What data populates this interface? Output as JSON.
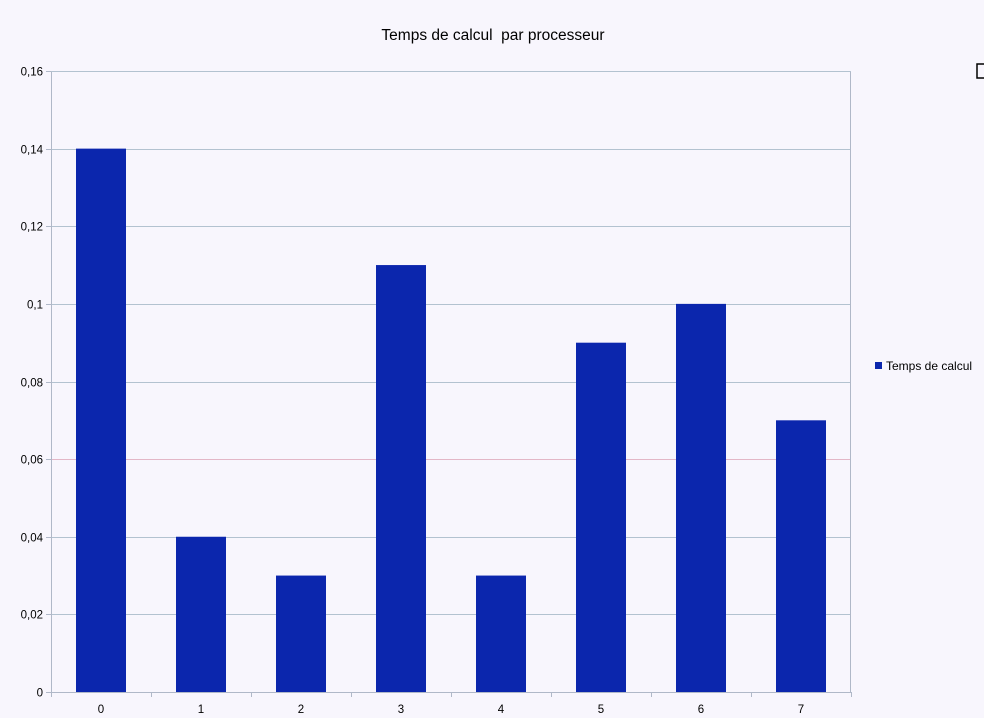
{
  "chart_data": {
    "type": "bar",
    "title": "Temps de calcul  par processeur",
    "xlabel": "",
    "ylabel": "",
    "categories": [
      "0",
      "1",
      "2",
      "3",
      "4",
      "5",
      "6",
      "7"
    ],
    "series": [
      {
        "name": "Temps de calcul",
        "values": [
          0.14,
          0.04,
          0.03,
          0.11,
          0.03,
          0.09,
          0.1,
          0.07
        ]
      }
    ],
    "ylim": [
      0,
      0.16
    ],
    "yticks": [
      0,
      0.02,
      0.04,
      0.06,
      0.08,
      0.1,
      0.12,
      0.14,
      0.16
    ],
    "ytick_labels": [
      "0",
      "0,02",
      "0,04",
      "0,06",
      "0,08",
      "0,1",
      "0,12",
      "0,14",
      "0,16"
    ],
    "grid": true,
    "legend": "right",
    "colors": {
      "bar": "#0b26ad",
      "grid": "#b3c2d0",
      "grid_highlight": "#e3b7c7",
      "axis": "#b0b8c8",
      "background": "#f8f6fd"
    }
  }
}
